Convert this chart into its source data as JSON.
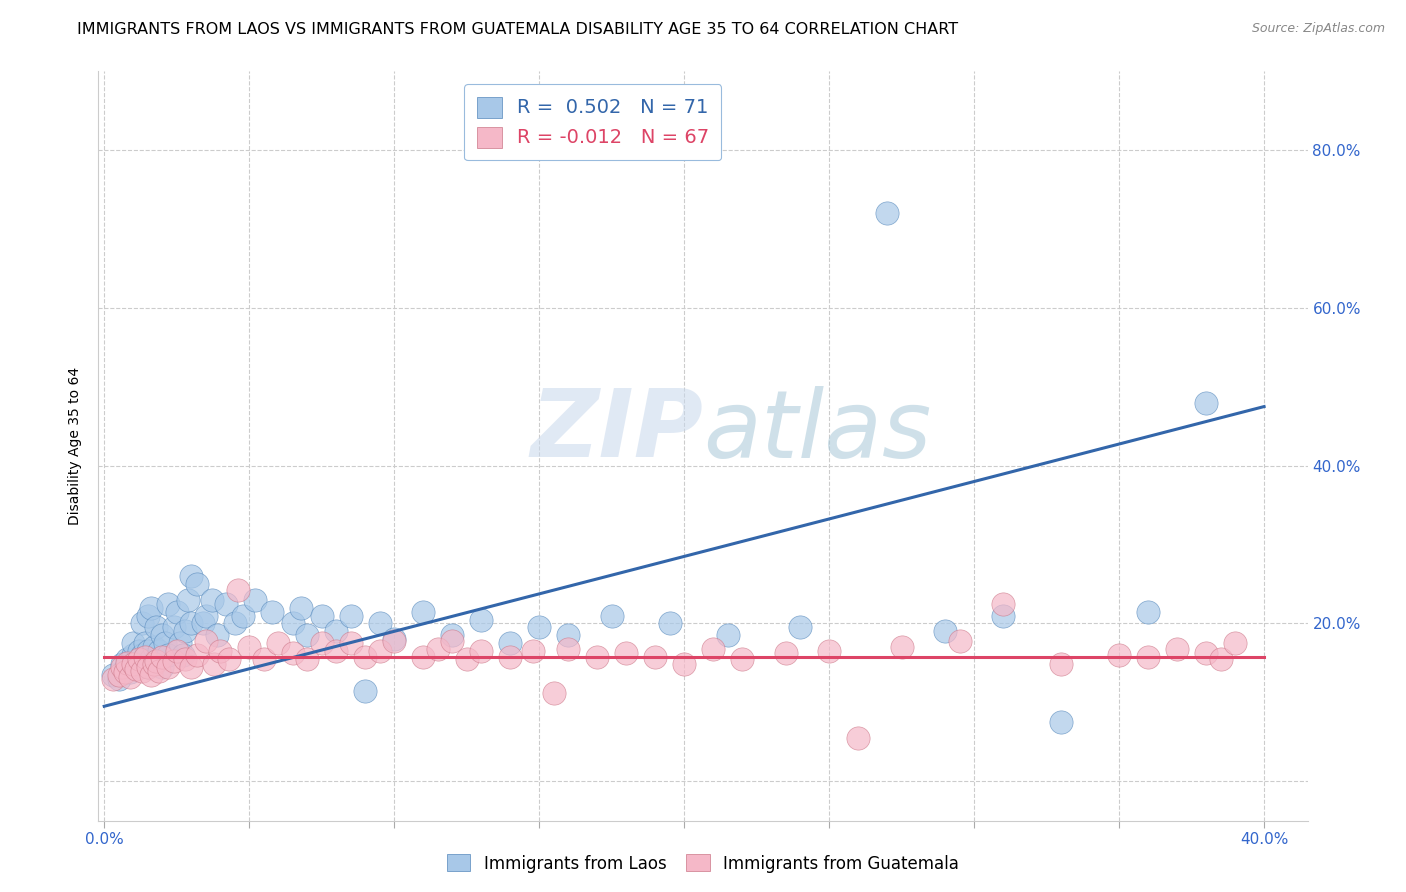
{
  "title": "IMMIGRANTS FROM LAOS VS IMMIGRANTS FROM GUATEMALA DISABILITY AGE 35 TO 64 CORRELATION CHART",
  "source": "Source: ZipAtlas.com",
  "ylabel": "Disability Age 35 to 64",
  "xlim": [
    -0.002,
    0.415
  ],
  "ylim": [
    -0.05,
    0.9
  ],
  "xticks": [
    0.0,
    0.05,
    0.1,
    0.15,
    0.2,
    0.25,
    0.3,
    0.35,
    0.4
  ],
  "xticklabels": [
    "0.0%",
    "",
    "",
    "",
    "",
    "",
    "",
    "",
    "40.0%"
  ],
  "yticks_right": [
    0.0,
    0.2,
    0.4,
    0.6,
    0.8
  ],
  "ytick_labels_right": [
    "",
    "20.0%",
    "40.0%",
    "60.0%",
    "80.0%"
  ],
  "blue_color": "#a8c8e8",
  "blue_edge_color": "#5588bb",
  "blue_line_color": "#3366aa",
  "pink_color": "#f5b8c8",
  "pink_edge_color": "#cc7788",
  "pink_line_color": "#dd4466",
  "blue_R": 0.502,
  "blue_N": 71,
  "pink_R": -0.012,
  "pink_N": 67,
  "watermark_zip": "ZIP",
  "watermark_atlas": "atlas",
  "blue_scatter_x": [
    0.003,
    0.005,
    0.006,
    0.007,
    0.008,
    0.009,
    0.01,
    0.01,
    0.011,
    0.012,
    0.012,
    0.013,
    0.013,
    0.014,
    0.015,
    0.015,
    0.015,
    0.016,
    0.016,
    0.017,
    0.018,
    0.018,
    0.019,
    0.02,
    0.02,
    0.021,
    0.022,
    0.022,
    0.024,
    0.025,
    0.026,
    0.027,
    0.028,
    0.029,
    0.03,
    0.03,
    0.032,
    0.034,
    0.035,
    0.037,
    0.039,
    0.042,
    0.045,
    0.048,
    0.052,
    0.058,
    0.065,
    0.068,
    0.07,
    0.075,
    0.08,
    0.085,
    0.09,
    0.095,
    0.1,
    0.11,
    0.12,
    0.13,
    0.14,
    0.15,
    0.16,
    0.175,
    0.195,
    0.215,
    0.24,
    0.27,
    0.29,
    0.31,
    0.33,
    0.36,
    0.38
  ],
  "blue_scatter_y": [
    0.135,
    0.13,
    0.148,
    0.142,
    0.155,
    0.138,
    0.16,
    0.175,
    0.15,
    0.145,
    0.165,
    0.16,
    0.2,
    0.175,
    0.145,
    0.165,
    0.21,
    0.155,
    0.22,
    0.17,
    0.155,
    0.195,
    0.165,
    0.145,
    0.185,
    0.175,
    0.16,
    0.225,
    0.195,
    0.215,
    0.175,
    0.16,
    0.19,
    0.23,
    0.2,
    0.26,
    0.25,
    0.2,
    0.21,
    0.23,
    0.185,
    0.225,
    0.2,
    0.21,
    0.23,
    0.215,
    0.2,
    0.22,
    0.185,
    0.21,
    0.19,
    0.21,
    0.115,
    0.2,
    0.18,
    0.215,
    0.185,
    0.205,
    0.175,
    0.195,
    0.185,
    0.21,
    0.2,
    0.185,
    0.195,
    0.72,
    0.19,
    0.21,
    0.075,
    0.215,
    0.48
  ],
  "pink_scatter_x": [
    0.003,
    0.005,
    0.006,
    0.007,
    0.008,
    0.009,
    0.01,
    0.011,
    0.012,
    0.013,
    0.014,
    0.015,
    0.016,
    0.017,
    0.018,
    0.019,
    0.02,
    0.022,
    0.024,
    0.025,
    0.028,
    0.03,
    0.032,
    0.035,
    0.038,
    0.04,
    0.043,
    0.046,
    0.05,
    0.055,
    0.06,
    0.065,
    0.07,
    0.075,
    0.08,
    0.085,
    0.09,
    0.095,
    0.1,
    0.11,
    0.115,
    0.12,
    0.125,
    0.13,
    0.14,
    0.148,
    0.155,
    0.16,
    0.17,
    0.18,
    0.19,
    0.2,
    0.21,
    0.22,
    0.235,
    0.25,
    0.26,
    0.275,
    0.295,
    0.31,
    0.33,
    0.35,
    0.36,
    0.37,
    0.38,
    0.385,
    0.39
  ],
  "pink_scatter_y": [
    0.13,
    0.135,
    0.145,
    0.138,
    0.15,
    0.132,
    0.148,
    0.142,
    0.155,
    0.14,
    0.158,
    0.145,
    0.135,
    0.148,
    0.152,
    0.14,
    0.158,
    0.145,
    0.152,
    0.165,
    0.155,
    0.145,
    0.16,
    0.178,
    0.148,
    0.165,
    0.155,
    0.242,
    0.17,
    0.155,
    0.175,
    0.162,
    0.155,
    0.175,
    0.165,
    0.175,
    0.158,
    0.165,
    0.178,
    0.158,
    0.168,
    0.178,
    0.155,
    0.165,
    0.158,
    0.165,
    0.112,
    0.168,
    0.158,
    0.162,
    0.158,
    0.148,
    0.168,
    0.155,
    0.162,
    0.165,
    0.055,
    0.17,
    0.178,
    0.225,
    0.148,
    0.16,
    0.158,
    0.168,
    0.162,
    0.155,
    0.175
  ],
  "blue_line_x": [
    0.0,
    0.4
  ],
  "blue_line_y": [
    0.095,
    0.475
  ],
  "pink_line_x": [
    0.0,
    0.4
  ],
  "pink_line_y": [
    0.158,
    0.158
  ],
  "background_color": "#ffffff",
  "grid_color": "#cccccc",
  "title_fontsize": 11.5,
  "axis_label_fontsize": 10,
  "tick_fontsize": 11
}
